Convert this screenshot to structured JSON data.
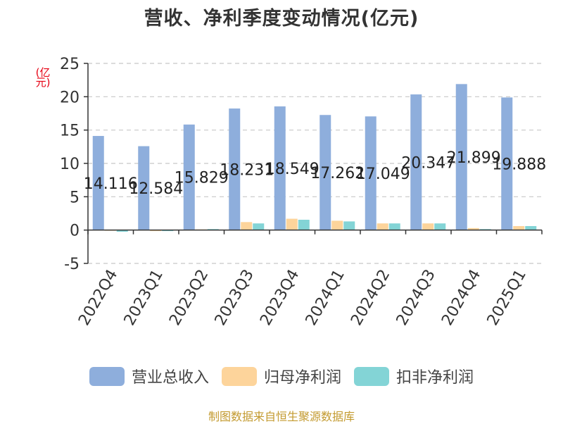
{
  "title": "营收、净利季度变动情况(亿元)",
  "unit_label": "(亿元)",
  "source": "制图数据来自恒生聚源数据库",
  "colors": {
    "revenue": "#8eaedc",
    "net_profit": "#fdd49b",
    "deducted_profit": "#83d4d6",
    "axis": "#333333",
    "grid": "#c8c8c8",
    "unit_red": "#e60012"
  },
  "legend": [
    {
      "name": "营业总收入",
      "color": "#8eaedc"
    },
    {
      "name": "归母净利润",
      "color": "#fdd49b"
    },
    {
      "name": "扣非净利润",
      "color": "#83d4d6"
    }
  ],
  "chart_data": {
    "type": "bar",
    "title": "营收、净利季度变动情况(亿元)",
    "ylabel": "(亿元)",
    "ylim": [
      -5,
      25
    ],
    "yticks": [
      -5,
      0,
      5,
      10,
      15,
      20,
      25
    ],
    "grid": true,
    "legend_position": "bottom",
    "categories": [
      "2022Q4",
      "2023Q1",
      "2023Q2",
      "2023Q3",
      "2023Q4",
      "2024Q1",
      "2024Q2",
      "2024Q3",
      "2024Q4",
      "2025Q1"
    ],
    "series": [
      {
        "name": "营业总收入",
        "values": [
          14.116,
          12.584,
          15.829,
          18.231,
          18.549,
          17.262,
          17.049,
          20.347,
          21.899,
          19.888
        ],
        "labels": [
          "14.116",
          "12.584",
          "15.829",
          "18.231",
          "18.549",
          "17.262",
          "17.049",
          "20.347",
          "21.899",
          "19.888"
        ]
      },
      {
        "name": "归母净利润",
        "values": [
          -0.1,
          -0.15,
          0.1,
          1.2,
          1.7,
          1.4,
          1.0,
          1.0,
          0.3,
          0.6
        ]
      },
      {
        "name": "扣非净利润",
        "values": [
          -0.25,
          -0.15,
          0.15,
          1.0,
          1.55,
          1.3,
          1.0,
          1.0,
          0.15,
          0.6
        ]
      }
    ]
  }
}
